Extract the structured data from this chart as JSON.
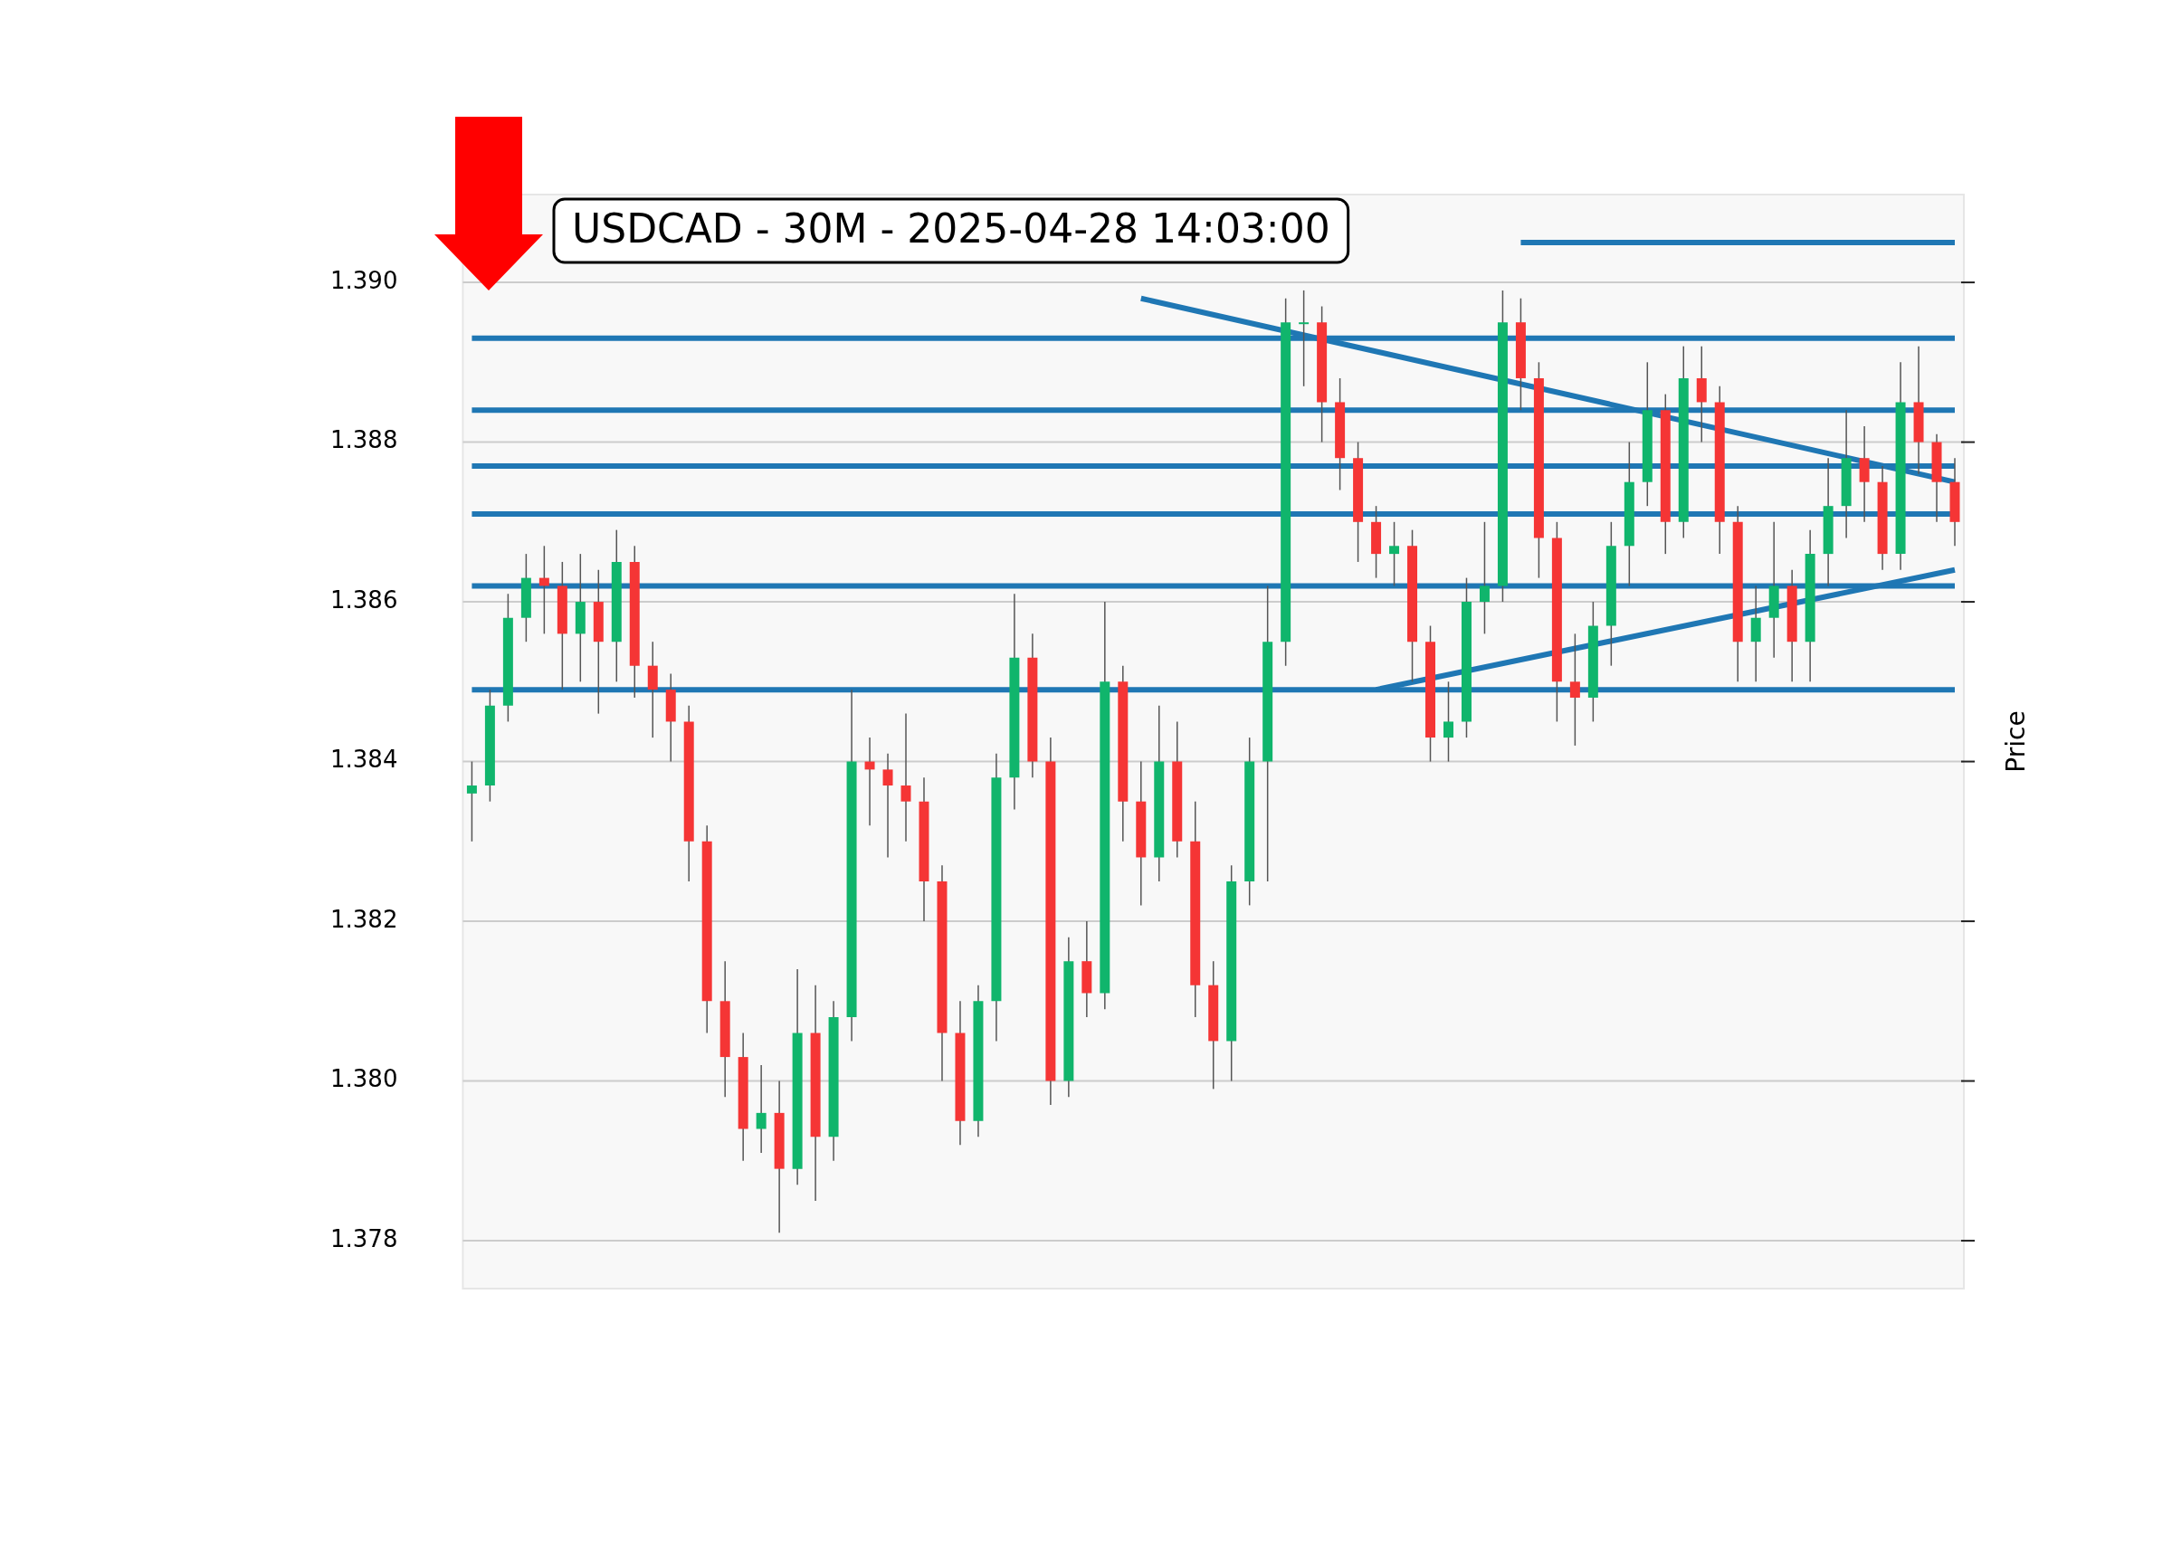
{
  "chart_data": {
    "type": "candlestick",
    "title": "USDCAD - 30M - 2025-04-28 14:03:00",
    "ylabel": "Price",
    "categories": [
      null,
      null,
      null,
      null,
      null,
      null,
      null,
      null,
      null,
      null,
      null,
      null,
      null,
      null,
      null,
      null,
      null,
      null,
      null,
      null,
      null,
      null,
      null,
      null,
      null,
      null,
      null,
      null,
      null,
      null,
      null,
      null,
      null,
      null,
      null,
      null,
      null,
      null,
      null,
      null,
      null,
      null,
      null,
      null,
      null,
      null,
      null,
      null,
      null,
      null,
      null,
      null,
      null,
      null,
      null,
      null,
      null,
      null,
      null,
      null,
      null,
      null,
      null,
      null,
      null,
      null,
      null,
      null,
      null,
      null,
      null,
      null,
      null,
      null,
      null,
      null,
      null,
      null,
      null,
      null,
      null,
      null,
      null
    ],
    "ohlc": [
      [
        1.3836,
        1.384,
        1.383,
        1.3837
      ],
      [
        1.3837,
        1.3849,
        1.3835,
        1.3847
      ],
      [
        1.3847,
        1.3861,
        1.3845,
        1.3858
      ],
      [
        1.3858,
        1.3866,
        1.3855,
        1.3863
      ],
      [
        1.3863,
        1.3867,
        1.3856,
        1.3862
      ],
      [
        1.3862,
        1.3865,
        1.3849,
        1.3856
      ],
      [
        1.3856,
        1.3866,
        1.385,
        1.386
      ],
      [
        1.386,
        1.3864,
        1.3846,
        1.3855
      ],
      [
        1.3855,
        1.3869,
        1.385,
        1.3865
      ],
      [
        1.3865,
        1.3867,
        1.3848,
        1.3852
      ],
      [
        1.3852,
        1.3855,
        1.3843,
        1.3849
      ],
      [
        1.3849,
        1.3851,
        1.384,
        1.3845
      ],
      [
        1.3845,
        1.3847,
        1.3825,
        1.383
      ],
      [
        1.383,
        1.3832,
        1.3806,
        1.381
      ],
      [
        1.381,
        1.3815,
        1.3798,
        1.3803
      ],
      [
        1.3803,
        1.3806,
        1.379,
        1.3794
      ],
      [
        1.3794,
        1.3802,
        1.3791,
        1.3796
      ],
      [
        1.3796,
        1.38,
        1.3781,
        1.3789
      ],
      [
        1.3789,
        1.3814,
        1.3787,
        1.3806
      ],
      [
        1.3806,
        1.3812,
        1.3785,
        1.3793
      ],
      [
        1.3793,
        1.381,
        1.379,
        1.3808
      ],
      [
        1.3808,
        1.3849,
        1.3805,
        1.384
      ],
      [
        1.384,
        1.3843,
        1.3832,
        1.3839
      ],
      [
        1.3839,
        1.3841,
        1.3828,
        1.3837
      ],
      [
        1.3837,
        1.3846,
        1.383,
        1.3835
      ],
      [
        1.3835,
        1.3838,
        1.382,
        1.3825
      ],
      [
        1.3825,
        1.3827,
        1.38,
        1.3806
      ],
      [
        1.3806,
        1.381,
        1.3792,
        1.3795
      ],
      [
        1.3795,
        1.3812,
        1.3793,
        1.381
      ],
      [
        1.381,
        1.3841,
        1.3805,
        1.3838
      ],
      [
        1.3838,
        1.3861,
        1.3834,
        1.3853
      ],
      [
        1.3853,
        1.3856,
        1.3838,
        1.384
      ],
      [
        1.384,
        1.3843,
        1.3797,
        1.38
      ],
      [
        1.38,
        1.3818,
        1.3798,
        1.3815
      ],
      [
        1.3815,
        1.382,
        1.3808,
        1.3811
      ],
      [
        1.3811,
        1.386,
        1.3809,
        1.385
      ],
      [
        1.385,
        1.3852,
        1.383,
        1.3835
      ],
      [
        1.3835,
        1.384,
        1.3822,
        1.3828
      ],
      [
        1.3828,
        1.3847,
        1.3825,
        1.384
      ],
      [
        1.384,
        1.3845,
        1.3828,
        1.383
      ],
      [
        1.383,
        1.3835,
        1.3808,
        1.3812
      ],
      [
        1.3812,
        1.3815,
        1.3799,
        1.3805
      ],
      [
        1.3805,
        1.3827,
        1.38,
        1.3825
      ],
      [
        1.3825,
        1.3843,
        1.3822,
        1.384
      ],
      [
        1.384,
        1.3862,
        1.3825,
        1.3855
      ],
      [
        1.3855,
        1.3898,
        1.3852,
        1.3895
      ],
      [
        1.3895,
        1.3899,
        1.3887,
        1.3895
      ],
      [
        1.3895,
        1.3897,
        1.388,
        1.3885
      ],
      [
        1.3885,
        1.3888,
        1.3874,
        1.3878
      ],
      [
        1.3878,
        1.388,
        1.3865,
        1.387
      ],
      [
        1.387,
        1.3872,
        1.3863,
        1.3866
      ],
      [
        1.3866,
        1.387,
        1.3862,
        1.3867
      ],
      [
        1.3867,
        1.3869,
        1.385,
        1.3855
      ],
      [
        1.3855,
        1.3857,
        1.384,
        1.3843
      ],
      [
        1.3843,
        1.385,
        1.384,
        1.3845
      ],
      [
        1.3845,
        1.3863,
        1.3843,
        1.386
      ],
      [
        1.386,
        1.387,
        1.3856,
        1.3862
      ],
      [
        1.3862,
        1.3899,
        1.386,
        1.3895
      ],
      [
        1.3895,
        1.3898,
        1.3884,
        1.3888
      ],
      [
        1.3888,
        1.389,
        1.3863,
        1.3868
      ],
      [
        1.3868,
        1.387,
        1.3845,
        1.385
      ],
      [
        1.385,
        1.3856,
        1.3842,
        1.3848
      ],
      [
        1.3848,
        1.386,
        1.3845,
        1.3857
      ],
      [
        1.3857,
        1.387,
        1.3852,
        1.3867
      ],
      [
        1.3867,
        1.388,
        1.3862,
        1.3875
      ],
      [
        1.3875,
        1.389,
        1.3872,
        1.3884
      ],
      [
        1.3884,
        1.3886,
        1.3866,
        1.387
      ],
      [
        1.387,
        1.3892,
        1.3868,
        1.3888
      ],
      [
        1.3888,
        1.3892,
        1.388,
        1.3885
      ],
      [
        1.3885,
        1.3887,
        1.3866,
        1.387
      ],
      [
        1.387,
        1.3872,
        1.385,
        1.3855
      ],
      [
        1.3855,
        1.3862,
        1.385,
        1.3858
      ],
      [
        1.3858,
        1.387,
        1.3853,
        1.3862
      ],
      [
        1.3862,
        1.3864,
        1.385,
        1.3855
      ],
      [
        1.3855,
        1.3869,
        1.385,
        1.3866
      ],
      [
        1.3866,
        1.3878,
        1.3862,
        1.3872
      ],
      [
        1.3872,
        1.3884,
        1.3868,
        1.3878
      ],
      [
        1.3878,
        1.3882,
        1.387,
        1.3875
      ],
      [
        1.3875,
        1.3877,
        1.3864,
        1.3866
      ],
      [
        1.3866,
        1.389,
        1.3864,
        1.3885
      ],
      [
        1.3885,
        1.3892,
        1.3876,
        1.388
      ],
      [
        1.388,
        1.3881,
        1.387,
        1.3875
      ],
      [
        1.3875,
        1.3878,
        1.3867,
        1.387
      ]
    ],
    "ylim": [
      1.3774,
      1.3911
    ],
    "yticks": [
      {
        "value": 1.378,
        "label": "1.378"
      },
      {
        "value": 1.38,
        "label": "1.380"
      },
      {
        "value": 1.382,
        "label": "1.382"
      },
      {
        "value": 1.384,
        "label": "1.384"
      },
      {
        "value": 1.386,
        "label": "1.386"
      },
      {
        "value": 1.388,
        "label": "1.388"
      },
      {
        "value": 1.39,
        "label": "1.390"
      }
    ],
    "grid": "y",
    "ref_lines": [
      {
        "axis": "y",
        "value": 1.3893,
        "color": "#1f77b4"
      },
      {
        "axis": "y",
        "value": 1.3884,
        "color": "#1f77b4"
      },
      {
        "axis": "y",
        "value": 1.3877,
        "color": "#1f77b4"
      },
      {
        "axis": "y",
        "value": 1.3871,
        "color": "#1f77b4"
      },
      {
        "axis": "y",
        "value": 1.3862,
        "color": "#1f77b4"
      },
      {
        "axis": "y",
        "value": 1.3849,
        "color": "#1f77b4"
      }
    ],
    "series": [
      {
        "type": "line",
        "color": "#1f77b4",
        "values": [
          null,
          null,
          null,
          null,
          null,
          null,
          null,
          null,
          null,
          null,
          null,
          null,
          null,
          null,
          null,
          null,
          null,
          null,
          null,
          null,
          null,
          null,
          null,
          null,
          null,
          null,
          null,
          null,
          null,
          null,
          null,
          null,
          null,
          null,
          null,
          null,
          null,
          1.3898,
          null,
          null,
          null,
          null,
          null,
          null,
          null,
          null,
          null,
          null,
          null,
          null,
          null,
          null,
          null,
          null,
          null,
          null,
          null,
          null,
          null,
          null,
          null,
          null,
          null,
          null,
          null,
          null,
          null,
          null,
          null,
          null,
          null,
          null,
          null,
          null,
          null,
          null,
          null,
          null,
          null,
          null,
          null,
          null,
          1.3875
        ]
      },
      {
        "type": "line",
        "color": "#1f77b4",
        "values": [
          null,
          null,
          null,
          null,
          null,
          null,
          null,
          null,
          null,
          null,
          null,
          null,
          null,
          null,
          null,
          null,
          null,
          null,
          null,
          null,
          null,
          null,
          null,
          null,
          null,
          null,
          null,
          null,
          null,
          null,
          null,
          null,
          null,
          null,
          null,
          null,
          null,
          null,
          null,
          null,
          null,
          null,
          null,
          null,
          null,
          null,
          null,
          null,
          null,
          null,
          1.3849,
          null,
          null,
          null,
          null,
          null,
          null,
          null,
          null,
          null,
          null,
          null,
          null,
          null,
          null,
          null,
          null,
          null,
          null,
          null,
          null,
          null,
          null,
          null,
          null,
          null,
          null,
          null,
          null,
          null,
          null,
          null,
          1.3864
        ]
      },
      {
        "type": "line",
        "color": "#1f77b4",
        "values": [
          null,
          null,
          null,
          null,
          null,
          null,
          null,
          null,
          null,
          null,
          null,
          null,
          null,
          null,
          null,
          null,
          null,
          null,
          null,
          null,
          null,
          null,
          null,
          null,
          null,
          null,
          null,
          null,
          null,
          null,
          null,
          null,
          null,
          null,
          null,
          null,
          null,
          null,
          null,
          null,
          null,
          null,
          null,
          null,
          null,
          null,
          null,
          null,
          null,
          null,
          null,
          null,
          null,
          null,
          null,
          null,
          null,
          null,
          1.3905,
          null,
          null,
          null,
          null,
          null,
          null,
          null,
          null,
          null,
          null,
          null,
          null,
          null,
          null,
          null,
          null,
          null,
          null,
          null,
          null,
          null,
          null,
          null,
          1.3905
        ]
      }
    ]
  }
}
